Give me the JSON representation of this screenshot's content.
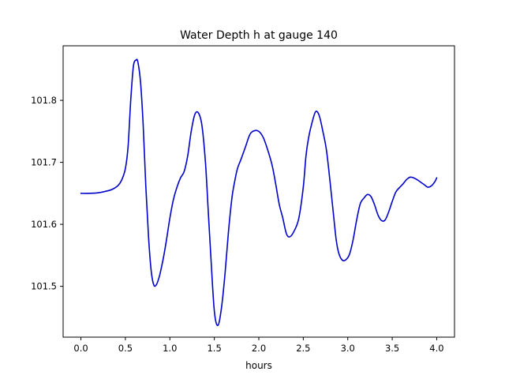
{
  "chart_data": {
    "type": "line",
    "title": "Water Depth h at gauge 140",
    "xlabel": "hours",
    "ylabel": "",
    "xlim": [
      -0.2,
      4.2
    ],
    "ylim": [
      101.418,
      101.888
    ],
    "xticks": [
      0.0,
      0.5,
      1.0,
      1.5,
      2.0,
      2.5,
      3.0,
      3.5,
      4.0
    ],
    "xtick_labels": [
      "0.0",
      "0.5",
      "1.0",
      "1.5",
      "2.0",
      "2.5",
      "3.0",
      "3.5",
      "4.0"
    ],
    "yticks": [
      101.5,
      101.6,
      101.7,
      101.8
    ],
    "ytick_labels": [
      "101.5",
      "101.6",
      "101.7",
      "101.8"
    ],
    "grid": false,
    "legend": "none",
    "colors": {
      "line": "#0000cc",
      "axes": "#000000",
      "background": "#ffffff"
    },
    "series": [
      {
        "x": [
          0.0,
          0.1,
          0.2,
          0.3,
          0.36,
          0.42,
          0.46,
          0.5,
          0.53,
          0.56,
          0.59,
          0.62,
          0.64,
          0.67,
          0.7,
          0.73,
          0.76,
          0.79,
          0.82,
          0.85,
          0.88,
          0.9,
          0.93,
          0.96,
          1.0,
          1.04,
          1.08,
          1.12,
          1.16,
          1.2,
          1.24,
          1.28,
          1.32,
          1.36,
          1.4,
          1.43,
          1.46,
          1.5,
          1.54,
          1.58,
          1.62,
          1.66,
          1.7,
          1.73,
          1.76,
          1.8,
          1.85,
          1.9,
          1.95,
          2.0,
          2.05,
          2.1,
          2.15,
          2.19,
          2.23,
          2.27,
          2.31,
          2.35,
          2.4,
          2.45,
          2.5,
          2.53,
          2.56,
          2.6,
          2.64,
          2.68,
          2.72,
          2.76,
          2.8,
          2.84,
          2.87,
          2.9,
          2.94,
          2.98,
          3.02,
          3.06,
          3.1,
          3.14,
          3.18,
          3.22,
          3.26,
          3.3,
          3.34,
          3.38,
          3.42,
          3.46,
          3.5,
          3.54,
          3.58,
          3.62,
          3.66,
          3.7,
          3.74,
          3.78,
          3.82,
          3.86,
          3.9,
          3.94,
          3.98,
          4.0
        ],
        "y": [
          101.65,
          101.65,
          101.651,
          101.654,
          101.657,
          101.663,
          101.672,
          101.69,
          101.725,
          101.8,
          101.855,
          101.865,
          101.862,
          101.83,
          101.76,
          101.66,
          101.58,
          101.525,
          101.502,
          101.503,
          101.515,
          101.527,
          101.548,
          101.573,
          101.61,
          101.64,
          101.66,
          101.675,
          101.685,
          101.71,
          101.75,
          101.777,
          101.78,
          101.76,
          101.7,
          101.625,
          101.55,
          101.46,
          101.437,
          101.465,
          101.52,
          101.59,
          101.645,
          101.67,
          101.69,
          101.705,
          101.725,
          101.745,
          101.751,
          101.75,
          101.74,
          101.72,
          101.695,
          101.665,
          101.632,
          101.61,
          101.585,
          101.58,
          101.59,
          101.61,
          101.66,
          101.71,
          101.74,
          101.765,
          101.782,
          101.775,
          101.75,
          101.72,
          101.67,
          101.615,
          101.575,
          101.553,
          101.542,
          101.543,
          101.552,
          101.575,
          101.607,
          101.633,
          101.642,
          101.648,
          101.645,
          101.632,
          101.615,
          101.606,
          101.607,
          101.62,
          101.637,
          101.652,
          101.659,
          101.665,
          101.672,
          101.676,
          101.675,
          101.672,
          101.668,
          101.664,
          101.66,
          101.662,
          101.669,
          101.675
        ]
      }
    ]
  }
}
